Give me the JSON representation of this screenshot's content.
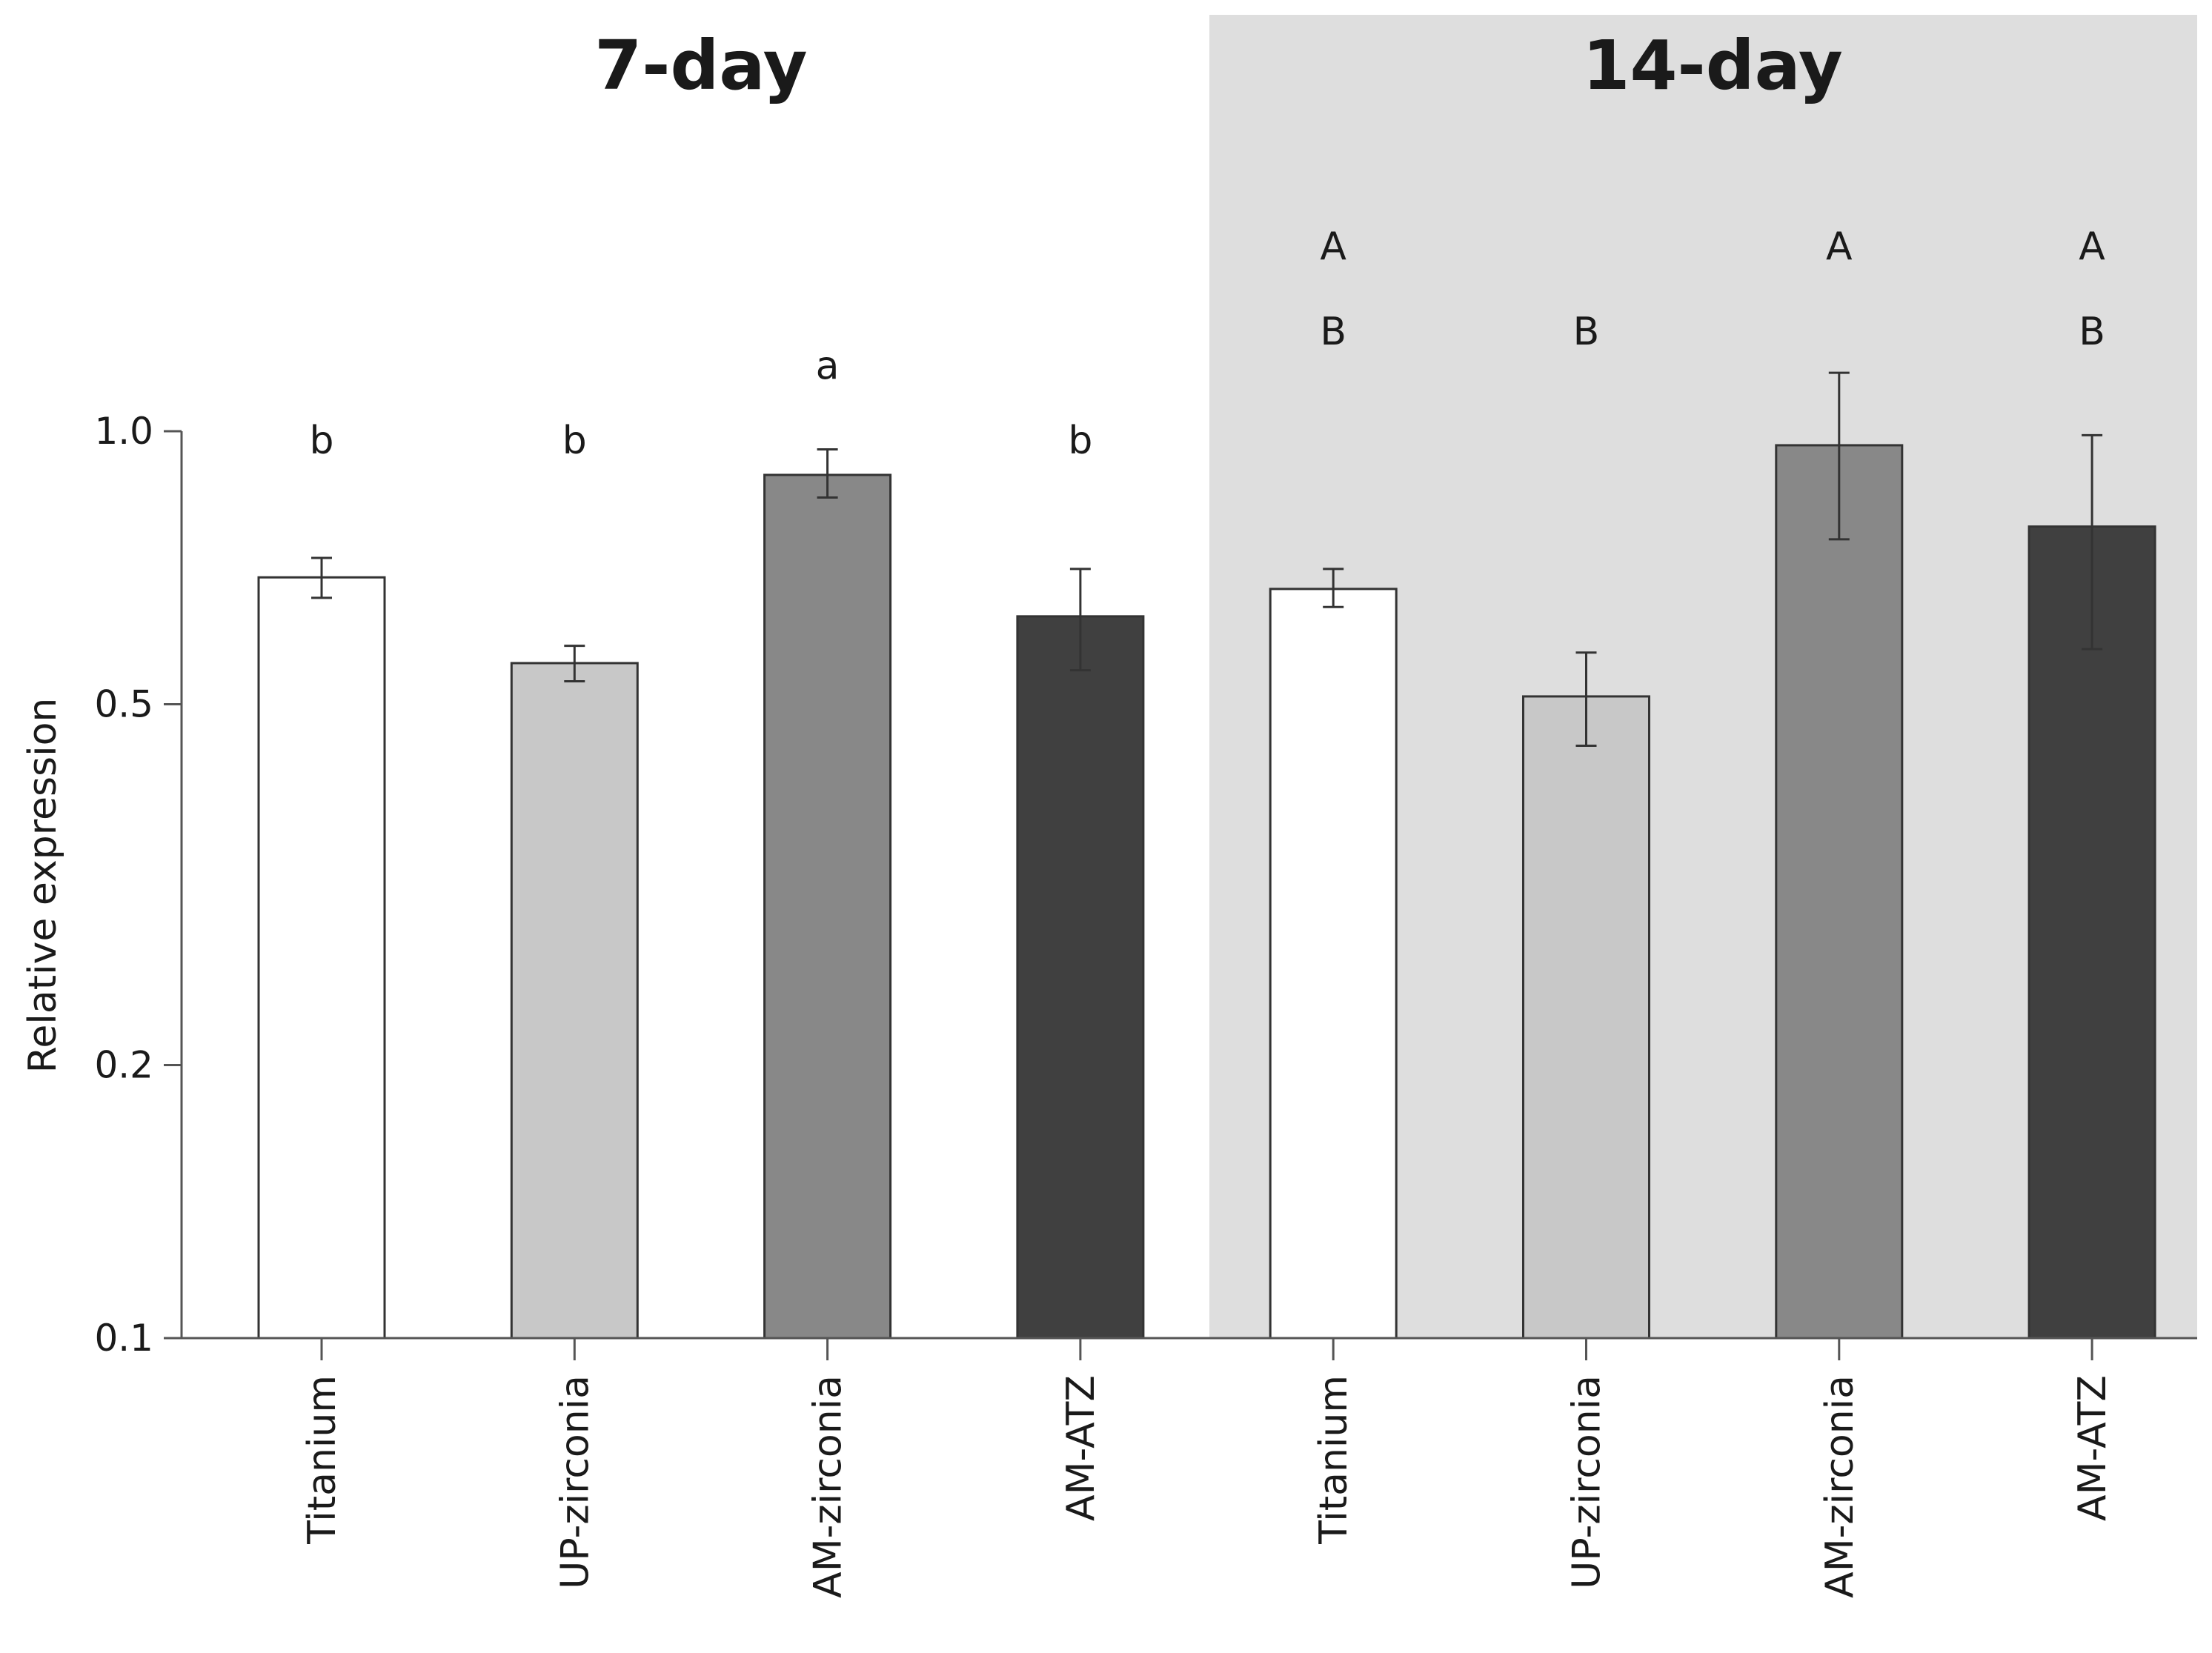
{
  "chart_data": {
    "type": "bar",
    "scale": "log",
    "ylabel": "Relative expression",
    "ylim": [
      0.1,
      1.0
    ],
    "yticks": [
      {
        "value": 0.1,
        "label": "0.1"
      },
      {
        "value": 0.2,
        "label": "0.2"
      },
      {
        "value": 0.5,
        "label": "0.5"
      },
      {
        "value": 1.0,
        "label": "1.0"
      }
    ],
    "panels": [
      {
        "title": "7-day",
        "shaded": false,
        "bars": [
          {
            "category": "Titanium",
            "value": 0.69,
            "err_low": 0.655,
            "err_high": 0.725,
            "letters": [
              "b"
            ],
            "color": "#ffffff"
          },
          {
            "category": "UP-zirconia",
            "value": 0.555,
            "err_low": 0.53,
            "err_high": 0.58,
            "letters": [
              "b"
            ],
            "color": "#c8c8c8"
          },
          {
            "category": "AM-zirconia",
            "value": 0.895,
            "err_low": 0.845,
            "err_high": 0.955,
            "letters": [
              "a"
            ],
            "color": "#888888"
          },
          {
            "category": "AM-ATZ",
            "value": 0.625,
            "err_low": 0.545,
            "err_high": 0.705,
            "letters": [
              "b"
            ],
            "color": "#404040"
          }
        ]
      },
      {
        "title": "14-day",
        "shaded": true,
        "bars": [
          {
            "category": "Titanium",
            "value": 0.67,
            "err_low": 0.64,
            "err_high": 0.705,
            "letters": [
              "A",
              "B"
            ],
            "color": "#ffffff"
          },
          {
            "category": "UP-zirconia",
            "value": 0.51,
            "err_low": 0.45,
            "err_high": 0.57,
            "letters": [
              "B"
            ],
            "color": "#c8c8c8"
          },
          {
            "category": "AM-zirconia",
            "value": 0.965,
            "err_low": 0.76,
            "err_high": 1.16,
            "letters": [
              "A"
            ],
            "color": "#888888"
          },
          {
            "category": "AM-ATZ",
            "value": 0.785,
            "err_low": 0.575,
            "err_high": 0.99,
            "letters": [
              "A",
              "B"
            ],
            "color": "#404040"
          }
        ]
      }
    ],
    "colors": {
      "shade": "#dedede",
      "axis": "#555555",
      "bar_edge": "#333333",
      "errorbar": "#333333"
    }
  }
}
